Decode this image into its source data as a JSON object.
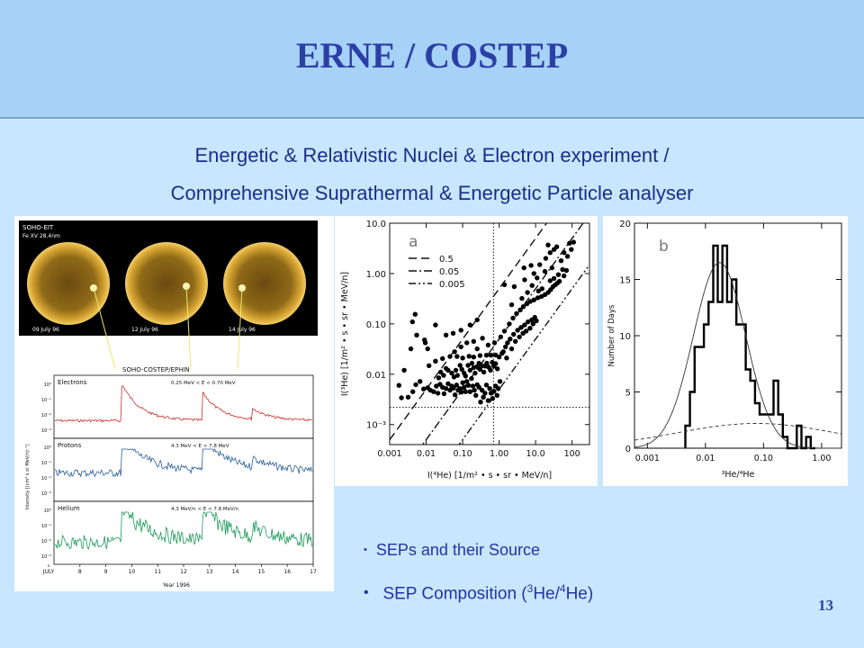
{
  "title": "ERNE / COSTEP",
  "subtitle_line1": "Energetic & Relativistic Nuclei & Electron experiment /",
  "subtitle_line2": "Comprehensive Suprathermal & Energetic Particle analyser",
  "bullets": {
    "b1": "SEPs and their Source",
    "b2_pre": "SEP Composition (",
    "b2_sup1": "3",
    "b2_mid": "He/",
    "b2_sup2": "4",
    "b2_post": "He)"
  },
  "page_number": "13",
  "colors": {
    "title": "#2b3fa5",
    "text": "#1c2d88",
    "background": "#c9e6ff",
    "header": "#a7d2f7"
  },
  "figure_left": {
    "eit_label": "SOHO-EIT",
    "eit_sublabel": "Fe XV  28.4nm",
    "sun_dates": [
      "09 July 96",
      "12 July 96",
      "14 July 96"
    ],
    "ephin_label": "SOHO-COSTEP/EPHIN",
    "rows": [
      {
        "name": "Electrons",
        "range": "0.25 MeV < E < 0.70 MeV",
        "color": "#cc2a2a"
      },
      {
        "name": "Protons",
        "range": "4.3 MeV < E < 7.8 MeV",
        "color": "#2a5f98"
      },
      {
        "name": "Helium",
        "range": "4.3 MeV/n < E < 7.8 MeV/n",
        "color": "#1e9a5c"
      }
    ],
    "y_labels": [
      "10⁰",
      "10⁻¹",
      "10⁻²",
      "10⁻³",
      "10⁻⁴"
    ],
    "ylabel": "Intensity [(cm² s sr MeV/n)⁻¹]",
    "x_ticks": [
      "JULY",
      "8",
      "9",
      "10",
      "11",
      "12",
      "13",
      "14",
      "15",
      "16",
      "17"
    ],
    "xlabel": "Year 1996"
  },
  "chart_data": [
    {
      "type": "scatter",
      "panel_label": "a",
      "xlabel": "I(⁴He)  [1/m² • s • sr • MeV/n]",
      "ylabel": "I(³He)  [1/m² • s • sr • MeV/n]",
      "x_scale": "log",
      "y_scale": "log",
      "xlim": [
        0.001,
        300
      ],
      "ylim": [
        0.0004,
        10
      ],
      "x_tick_labels": [
        "0.001",
        "0.01",
        "0.10",
        "1.00",
        "10.0",
        "100"
      ],
      "y_tick_labels": [
        "10⁻³",
        "0.01",
        "0.10",
        "1.00",
        "10.0"
      ],
      "legend": [
        {
          "label": "0.5",
          "ratio": 0.5,
          "dash": "dashed"
        },
        {
          "label": "0.05",
          "ratio": 0.05,
          "dash": "dashdot"
        },
        {
          "label": "0.005",
          "ratio": 0.005,
          "dash": "dashdotdot"
        }
      ],
      "reference_lines": {
        "vertical_x": 0.7,
        "horizontal_y": 0.0022
      },
      "points": [
        [
          0.0021,
          0.0034
        ],
        [
          0.0018,
          0.006
        ],
        [
          0.0025,
          0.012
        ],
        [
          0.0032,
          0.0035
        ],
        [
          0.0052,
          0.0062
        ],
        [
          0.0043,
          0.0045
        ],
        [
          0.0068,
          0.0072
        ],
        [
          0.0085,
          0.0051
        ],
        [
          0.011,
          0.0054
        ],
        [
          0.013,
          0.0048
        ],
        [
          0.016,
          0.0045
        ],
        [
          0.019,
          0.0058
        ],
        [
          0.021,
          0.0042
        ],
        [
          0.024,
          0.0063
        ],
        [
          0.028,
          0.0055
        ],
        [
          0.031,
          0.0041
        ],
        [
          0.035,
          0.0052
        ],
        [
          0.04,
          0.0065
        ],
        [
          0.045,
          0.0048
        ],
        [
          0.05,
          0.0058
        ],
        [
          0.056,
          0.0053
        ],
        [
          0.062,
          0.0039
        ],
        [
          0.068,
          0.0061
        ],
        [
          0.075,
          0.0048
        ],
        [
          0.083,
          0.0052
        ],
        [
          0.092,
          0.0044
        ],
        [
          0.1,
          0.0068
        ],
        [
          0.11,
          0.0055
        ],
        [
          0.12,
          0.0045
        ],
        [
          0.13,
          0.0072
        ],
        [
          0.145,
          0.006
        ],
        [
          0.16,
          0.0045
        ],
        [
          0.175,
          0.0082
        ],
        [
          0.19,
          0.0058
        ],
        [
          0.21,
          0.0048
        ],
        [
          0.23,
          0.0038
        ],
        [
          0.25,
          0.0062
        ],
        [
          0.28,
          0.0055
        ],
        [
          0.31,
          0.0028
        ],
        [
          0.34,
          0.0048
        ],
        [
          0.37,
          0.0035
        ],
        [
          0.41,
          0.0042
        ],
        [
          0.45,
          0.0061
        ],
        [
          0.5,
          0.003
        ],
        [
          0.55,
          0.0052
        ],
        [
          0.6,
          0.0042
        ],
        [
          0.66,
          0.0033
        ],
        [
          0.72,
          0.0046
        ],
        [
          0.8,
          0.0058
        ],
        [
          0.88,
          0.0038
        ],
        [
          0.95,
          0.0052
        ],
        [
          1.05,
          0.0072
        ],
        [
          0.022,
          0.0085
        ],
        [
          0.025,
          0.011
        ],
        [
          0.03,
          0.0095
        ],
        [
          0.035,
          0.013
        ],
        [
          0.04,
          0.012
        ],
        [
          0.05,
          0.0105
        ],
        [
          0.058,
          0.0088
        ],
        [
          0.065,
          0.012
        ],
        [
          0.072,
          0.0095
        ],
        [
          0.085,
          0.015
        ],
        [
          0.095,
          0.0125
        ],
        [
          0.11,
          0.0105
        ],
        [
          0.12,
          0.0092
        ],
        [
          0.14,
          0.015
        ],
        [
          0.16,
          0.012
        ],
        [
          0.18,
          0.0165
        ],
        [
          0.2,
          0.0135
        ],
        [
          0.22,
          0.0105
        ],
        [
          0.25,
          0.0142
        ],
        [
          0.28,
          0.0165
        ],
        [
          0.3,
          0.0125
        ],
        [
          0.34,
          0.0148
        ],
        [
          0.38,
          0.011
        ],
        [
          0.42,
          0.0145
        ],
        [
          0.46,
          0.0165
        ],
        [
          0.52,
          0.0138
        ],
        [
          0.58,
          0.012
        ],
        [
          0.65,
          0.0172
        ],
        [
          0.72,
          0.0145
        ],
        [
          0.8,
          0.0162
        ],
        [
          0.9,
          0.0128
        ],
        [
          0.012,
          0.0148
        ],
        [
          0.018,
          0.0182
        ],
        [
          0.028,
          0.0205
        ],
        [
          0.045,
          0.0225
        ],
        [
          0.07,
          0.0225
        ],
        [
          0.1,
          0.021
        ],
        [
          0.15,
          0.0228
        ],
        [
          0.2,
          0.022
        ],
        [
          0.3,
          0.0235
        ],
        [
          0.45,
          0.0238
        ],
        [
          0.6,
          0.0238
        ],
        [
          0.8,
          0.024
        ],
        [
          1.0,
          0.022
        ],
        [
          1.2,
          0.026
        ],
        [
          0.06,
          0.028
        ],
        [
          0.09,
          0.035
        ],
        [
          0.13,
          0.042
        ],
        [
          0.2,
          0.045
        ],
        [
          0.25,
          0.032
        ],
        [
          0.35,
          0.052
        ],
        [
          0.5,
          0.038
        ],
        [
          0.75,
          0.042
        ],
        [
          0.011,
          0.032
        ],
        [
          0.035,
          0.06
        ],
        [
          0.055,
          0.065
        ],
        [
          0.09,
          0.075
        ],
        [
          0.16,
          0.095
        ],
        [
          0.25,
          0.12
        ],
        [
          0.0038,
          0.032
        ],
        [
          0.0055,
          0.06
        ],
        [
          0.0095,
          0.042
        ],
        [
          0.0042,
          0.11
        ],
        [
          0.005,
          0.155
        ],
        [
          0.009,
          0.048
        ],
        [
          0.018,
          0.095
        ],
        [
          1.3,
          0.028
        ],
        [
          1.5,
          0.035
        ],
        [
          1.7,
          0.042
        ],
        [
          1.6,
          0.021
        ],
        [
          2.0,
          0.05
        ],
        [
          2.2,
          0.032
        ],
        [
          2.5,
          0.062
        ],
        [
          2.8,
          0.045
        ],
        [
          3.2,
          0.075
        ],
        [
          3.6,
          0.055
        ],
        [
          4.0,
          0.085
        ],
        [
          4.5,
          0.065
        ],
        [
          5.0,
          0.095
        ],
        [
          5.5,
          0.072
        ],
        [
          6.2,
          0.11
        ],
        [
          7.0,
          0.082
        ],
        [
          7.8,
          0.12
        ],
        [
          8.5,
          0.1
        ],
        [
          9.5,
          0.135
        ],
        [
          10.5,
          0.115
        ],
        [
          1.1,
          0.055
        ],
        [
          1.4,
          0.072
        ],
        [
          1.9,
          0.1
        ],
        [
          2.4,
          0.13
        ],
        [
          3.0,
          0.16
        ],
        [
          3.8,
          0.19
        ],
        [
          4.6,
          0.22
        ],
        [
          5.8,
          0.25
        ],
        [
          7.2,
          0.28
        ],
        [
          9,
          0.3
        ],
        [
          11.5,
          0.33
        ],
        [
          14.5,
          0.35
        ],
        [
          18,
          0.38
        ],
        [
          22,
          0.42
        ],
        [
          26,
          0.48
        ],
        [
          30,
          0.55
        ],
        [
          35,
          0.6
        ],
        [
          40,
          0.65
        ],
        [
          45,
          0.7
        ],
        [
          60,
          0.9
        ],
        [
          70,
          1.15
        ],
        [
          55,
          1.2
        ],
        [
          42,
          0.95
        ],
        [
          32,
          0.8
        ],
        [
          25,
          0.72
        ],
        [
          12,
          0.45
        ],
        [
          15,
          0.5
        ],
        [
          6,
          0.42
        ],
        [
          8,
          0.58
        ],
        [
          4.2,
          0.32
        ],
        [
          2.2,
          0.24
        ],
        [
          28,
          1.3
        ],
        [
          1.4,
          0.6
        ],
        [
          2.6,
          0.55
        ],
        [
          11,
          0.82
        ],
        [
          4.8,
          1.3
        ],
        [
          7.5,
          1.45
        ],
        [
          13,
          1.5
        ],
        [
          19,
          2.0
        ],
        [
          25,
          2.6
        ],
        [
          32,
          3.0
        ],
        [
          38,
          3.4
        ],
        [
          22,
          3.7
        ],
        [
          85,
          4.0
        ],
        [
          110,
          4.2
        ],
        [
          75,
          2.2
        ],
        [
          95,
          3.0
        ],
        [
          60,
          2.6
        ],
        [
          50,
          1.8
        ],
        [
          18,
          1.1
        ],
        [
          9,
          1.0
        ],
        [
          5,
          0.75
        ]
      ]
    },
    {
      "type": "bar",
      "panel_label": "b",
      "xlabel": "³He/⁴He",
      "ylabel": "Number of Days",
      "x_scale": "log",
      "xlim": [
        0.0006,
        2.2
      ],
      "ylim": [
        0,
        20
      ],
      "x_tick_labels": [
        "0.001",
        "0.01",
        "0.10",
        "1.00"
      ],
      "y_tick_labels": [
        "0",
        "5",
        "10",
        "15",
        "20"
      ],
      "bin_edges": [
        0.0045,
        0.0054,
        0.0065,
        0.0078,
        0.0094,
        0.0113,
        0.0136,
        0.0163,
        0.0196,
        0.0236,
        0.0284,
        0.0341,
        0.041,
        0.0493,
        0.0593,
        0.0713,
        0.0857,
        0.103,
        0.124,
        0.149,
        0.179,
        0.215,
        0.259,
        0.311,
        0.374,
        0.45,
        0.541,
        0.65,
        0.78
      ],
      "counts": [
        2,
        5,
        9,
        9,
        11,
        13,
        18,
        13,
        18,
        13,
        15,
        11,
        11,
        7,
        6,
        4,
        3,
        3,
        3,
        6,
        3,
        1,
        0,
        0,
        2,
        0,
        1,
        0
      ],
      "fit_curves": [
        {
          "name": "narrow",
          "peak": 16.5,
          "center": 0.0175,
          "width": 0.45
        },
        {
          "name": "broad",
          "peak": 2.2,
          "center": 0.075,
          "width": 1.4
        }
      ]
    }
  ]
}
